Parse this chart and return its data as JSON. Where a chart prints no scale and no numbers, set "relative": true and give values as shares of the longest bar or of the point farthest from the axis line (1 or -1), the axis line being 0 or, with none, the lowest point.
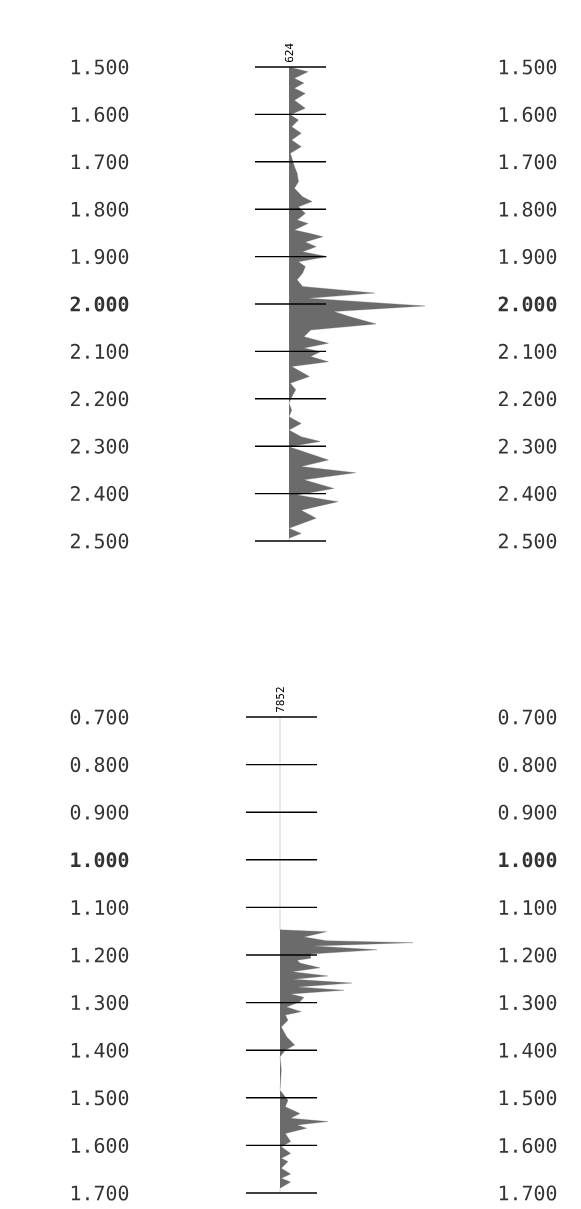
{
  "chart_data": [
    {
      "type": "area",
      "orientation": "horizontal",
      "relative": true,
      "title": "624",
      "color": "#6b6b6b",
      "tick_labels": "y",
      "ref_lines": [
        {
          "axis": "y",
          "value": 1.5
        },
        {
          "axis": "y",
          "value": 1.6
        },
        {
          "axis": "y",
          "value": 1.7
        },
        {
          "axis": "y",
          "value": 1.8
        },
        {
          "axis": "y",
          "value": 1.9
        },
        {
          "axis": "y",
          "value": 2.0
        },
        {
          "axis": "y",
          "value": 2.1
        },
        {
          "axis": "y",
          "value": 2.2
        },
        {
          "axis": "y",
          "value": 2.3
        },
        {
          "axis": "y",
          "value": 2.4
        },
        {
          "axis": "y",
          "value": 2.5
        }
      ],
      "x": [
        1.5,
        1.51,
        1.524,
        1.534,
        1.545,
        1.556,
        1.57,
        1.587,
        1.601,
        1.612,
        1.626,
        1.64,
        1.654,
        1.668,
        1.682,
        1.71,
        1.724,
        1.742,
        1.756,
        1.774,
        1.784,
        1.795,
        1.809,
        1.823,
        1.83,
        1.844,
        1.851,
        1.858,
        1.869,
        1.879,
        1.89,
        1.9,
        1.911,
        1.921,
        1.935,
        1.949,
        1.963,
        1.977,
        1.988,
        2.004,
        2.016,
        2.027,
        2.042,
        2.055,
        2.069,
        2.083,
        2.093,
        2.101,
        2.111,
        2.122,
        2.132,
        2.153,
        2.167,
        2.181,
        2.196,
        2.209,
        2.224,
        2.238,
        2.252,
        2.266,
        2.28,
        2.29,
        2.301,
        2.329,
        2.343,
        2.356,
        2.371,
        2.389,
        2.403,
        2.417,
        2.435,
        2.452,
        2.473,
        2.484,
        2.494,
        2.5
      ],
      "values": [
        0,
        0.14,
        0.04,
        0.11,
        0.04,
        0.12,
        0.04,
        0.12,
        0.01,
        0.07,
        0.02,
        0.09,
        0.02,
        0.09,
        0.01,
        0.04,
        0.06,
        0.07,
        0.04,
        0.1,
        0.17,
        0.07,
        0.12,
        0.06,
        0.14,
        0.04,
        0.15,
        0.25,
        0.12,
        0.2,
        0.1,
        0.28,
        0.07,
        0.12,
        0.1,
        0.06,
        0.1,
        0.63,
        0.14,
        1,
        0.33,
        0.45,
        0.64,
        0.16,
        0.11,
        0.29,
        0.11,
        0.23,
        0.16,
        0.29,
        0.02,
        0.15,
        0.01,
        0.05,
        0.02,
        0,
        0.02,
        0,
        0.09,
        0,
        0.09,
        0.23,
        0,
        0.29,
        0.09,
        0.49,
        0.11,
        0.33,
        0.06,
        0.36,
        0.09,
        0.2,
        0,
        0.09,
        0,
        0
      ],
      "ylim": [
        2.5,
        1.5
      ],
      "yticks": [
        {
          "value": 1.5,
          "label": "1.500"
        },
        {
          "value": 1.6,
          "label": "1.600"
        },
        {
          "value": 1.7,
          "label": "1.700"
        },
        {
          "value": 1.8,
          "label": "1.800"
        },
        {
          "value": 1.9,
          "label": "1.900"
        },
        {
          "value": 2.0,
          "label": "2.000"
        },
        {
          "value": 2.1,
          "label": "2.100"
        },
        {
          "value": 2.2,
          "label": "2.200"
        },
        {
          "value": 2.3,
          "label": "2.300"
        },
        {
          "value": 2.4,
          "label": "2.400"
        },
        {
          "value": 2.5,
          "label": "2.500"
        }
      ],
      "y2lim": [
        2.5,
        1.5
      ],
      "y2ticks": [
        {
          "value": 1.5,
          "label": "1.500"
        },
        {
          "value": 1.6,
          "label": "1.600"
        },
        {
          "value": 1.7,
          "label": "1.700"
        },
        {
          "value": 1.8,
          "label": "1.800"
        },
        {
          "value": 1.9,
          "label": "1.900"
        },
        {
          "value": 2.0,
          "label": "2.000"
        },
        {
          "value": 2.1,
          "label": "2.100"
        },
        {
          "value": 2.2,
          "label": "2.200"
        },
        {
          "value": 2.3,
          "label": "2.300"
        },
        {
          "value": 2.4,
          "label": "2.400"
        },
        {
          "value": 2.5,
          "label": "2.500"
        }
      ]
    },
    {
      "type": "area",
      "orientation": "horizontal",
      "relative": true,
      "title": "7852",
      "color": "#6b6b6b",
      "tick_labels": "y",
      "ref_lines": [
        {
          "axis": "y",
          "value": 0.7
        },
        {
          "axis": "y",
          "value": 0.8
        },
        {
          "axis": "y",
          "value": 0.9
        },
        {
          "axis": "y",
          "value": 1.0
        },
        {
          "axis": "y",
          "value": 1.1
        },
        {
          "axis": "y",
          "value": 1.2
        },
        {
          "axis": "y",
          "value": 1.3
        },
        {
          "axis": "y",
          "value": 1.4
        },
        {
          "axis": "y",
          "value": 1.5
        },
        {
          "axis": "y",
          "value": 1.6
        },
        {
          "axis": "y",
          "value": 1.7
        }
      ],
      "x": [
        0.7,
        1.147,
        1.151,
        1.162,
        1.17,
        1.174,
        1.181,
        1.189,
        1.198,
        1.207,
        1.211,
        1.217,
        1.227,
        1.235,
        1.244,
        1.251,
        1.259,
        1.267,
        1.274,
        1.282,
        1.289,
        1.298,
        1.309,
        1.319,
        1.326,
        1.337,
        1.351,
        1.372,
        1.389,
        1.4,
        1.414,
        1.442,
        1.484,
        1.505,
        1.519,
        1.533,
        1.543,
        1.55,
        1.557,
        1.564,
        1.575,
        1.592,
        1.603,
        1.617,
        1.627,
        1.634,
        1.648,
        1.66,
        1.669,
        1.677,
        1.69,
        1.7
      ],
      "values": [
        0,
        0,
        0.35,
        0.18,
        0.35,
        1,
        0.25,
        0.73,
        0.23,
        0.23,
        0.13,
        0.15,
        0.3,
        0.09,
        0.36,
        0.1,
        0.54,
        0.13,
        0.48,
        0.08,
        0.18,
        0.15,
        0.05,
        0.16,
        0.04,
        0.06,
        0.01,
        0.05,
        0.11,
        0.04,
        0,
        0.01,
        0,
        0.06,
        0.04,
        0.15,
        0.08,
        0.36,
        0.13,
        0.2,
        0.04,
        0.08,
        0.01,
        0.08,
        0.01,
        0.06,
        0.01,
        0.08,
        0.01,
        0.08,
        0,
        0
      ],
      "ylim": [
        1.7,
        0.7
      ],
      "yticks": [
        {
          "value": 0.7,
          "label": "0.700"
        },
        {
          "value": 0.8,
          "label": "0.800"
        },
        {
          "value": 0.9,
          "label": "0.900"
        },
        {
          "value": 1.0,
          "label": "1.000"
        },
        {
          "value": 1.1,
          "label": "1.100"
        },
        {
          "value": 1.2,
          "label": "1.200"
        },
        {
          "value": 1.3,
          "label": "1.300"
        },
        {
          "value": 1.4,
          "label": "1.400"
        },
        {
          "value": 1.5,
          "label": "1.500"
        },
        {
          "value": 1.6,
          "label": "1.600"
        },
        {
          "value": 1.7,
          "label": "1.700"
        }
      ],
      "y2lim": [
        1.7,
        0.7
      ],
      "y2ticks": [
        {
          "value": 0.7,
          "label": "0.700"
        },
        {
          "value": 0.8,
          "label": "0.800"
        },
        {
          "value": 0.9,
          "label": "0.900"
        },
        {
          "value": 1.0,
          "label": "1.000"
        },
        {
          "value": 1.1,
          "label": "1.100"
        },
        {
          "value": 1.2,
          "label": "1.200"
        },
        {
          "value": 1.3,
          "label": "1.300"
        },
        {
          "value": 1.4,
          "label": "1.400"
        },
        {
          "value": 1.5,
          "label": "1.500"
        },
        {
          "value": 1.6,
          "label": "1.600"
        },
        {
          "value": 1.7,
          "label": "1.700"
        }
      ]
    }
  ]
}
